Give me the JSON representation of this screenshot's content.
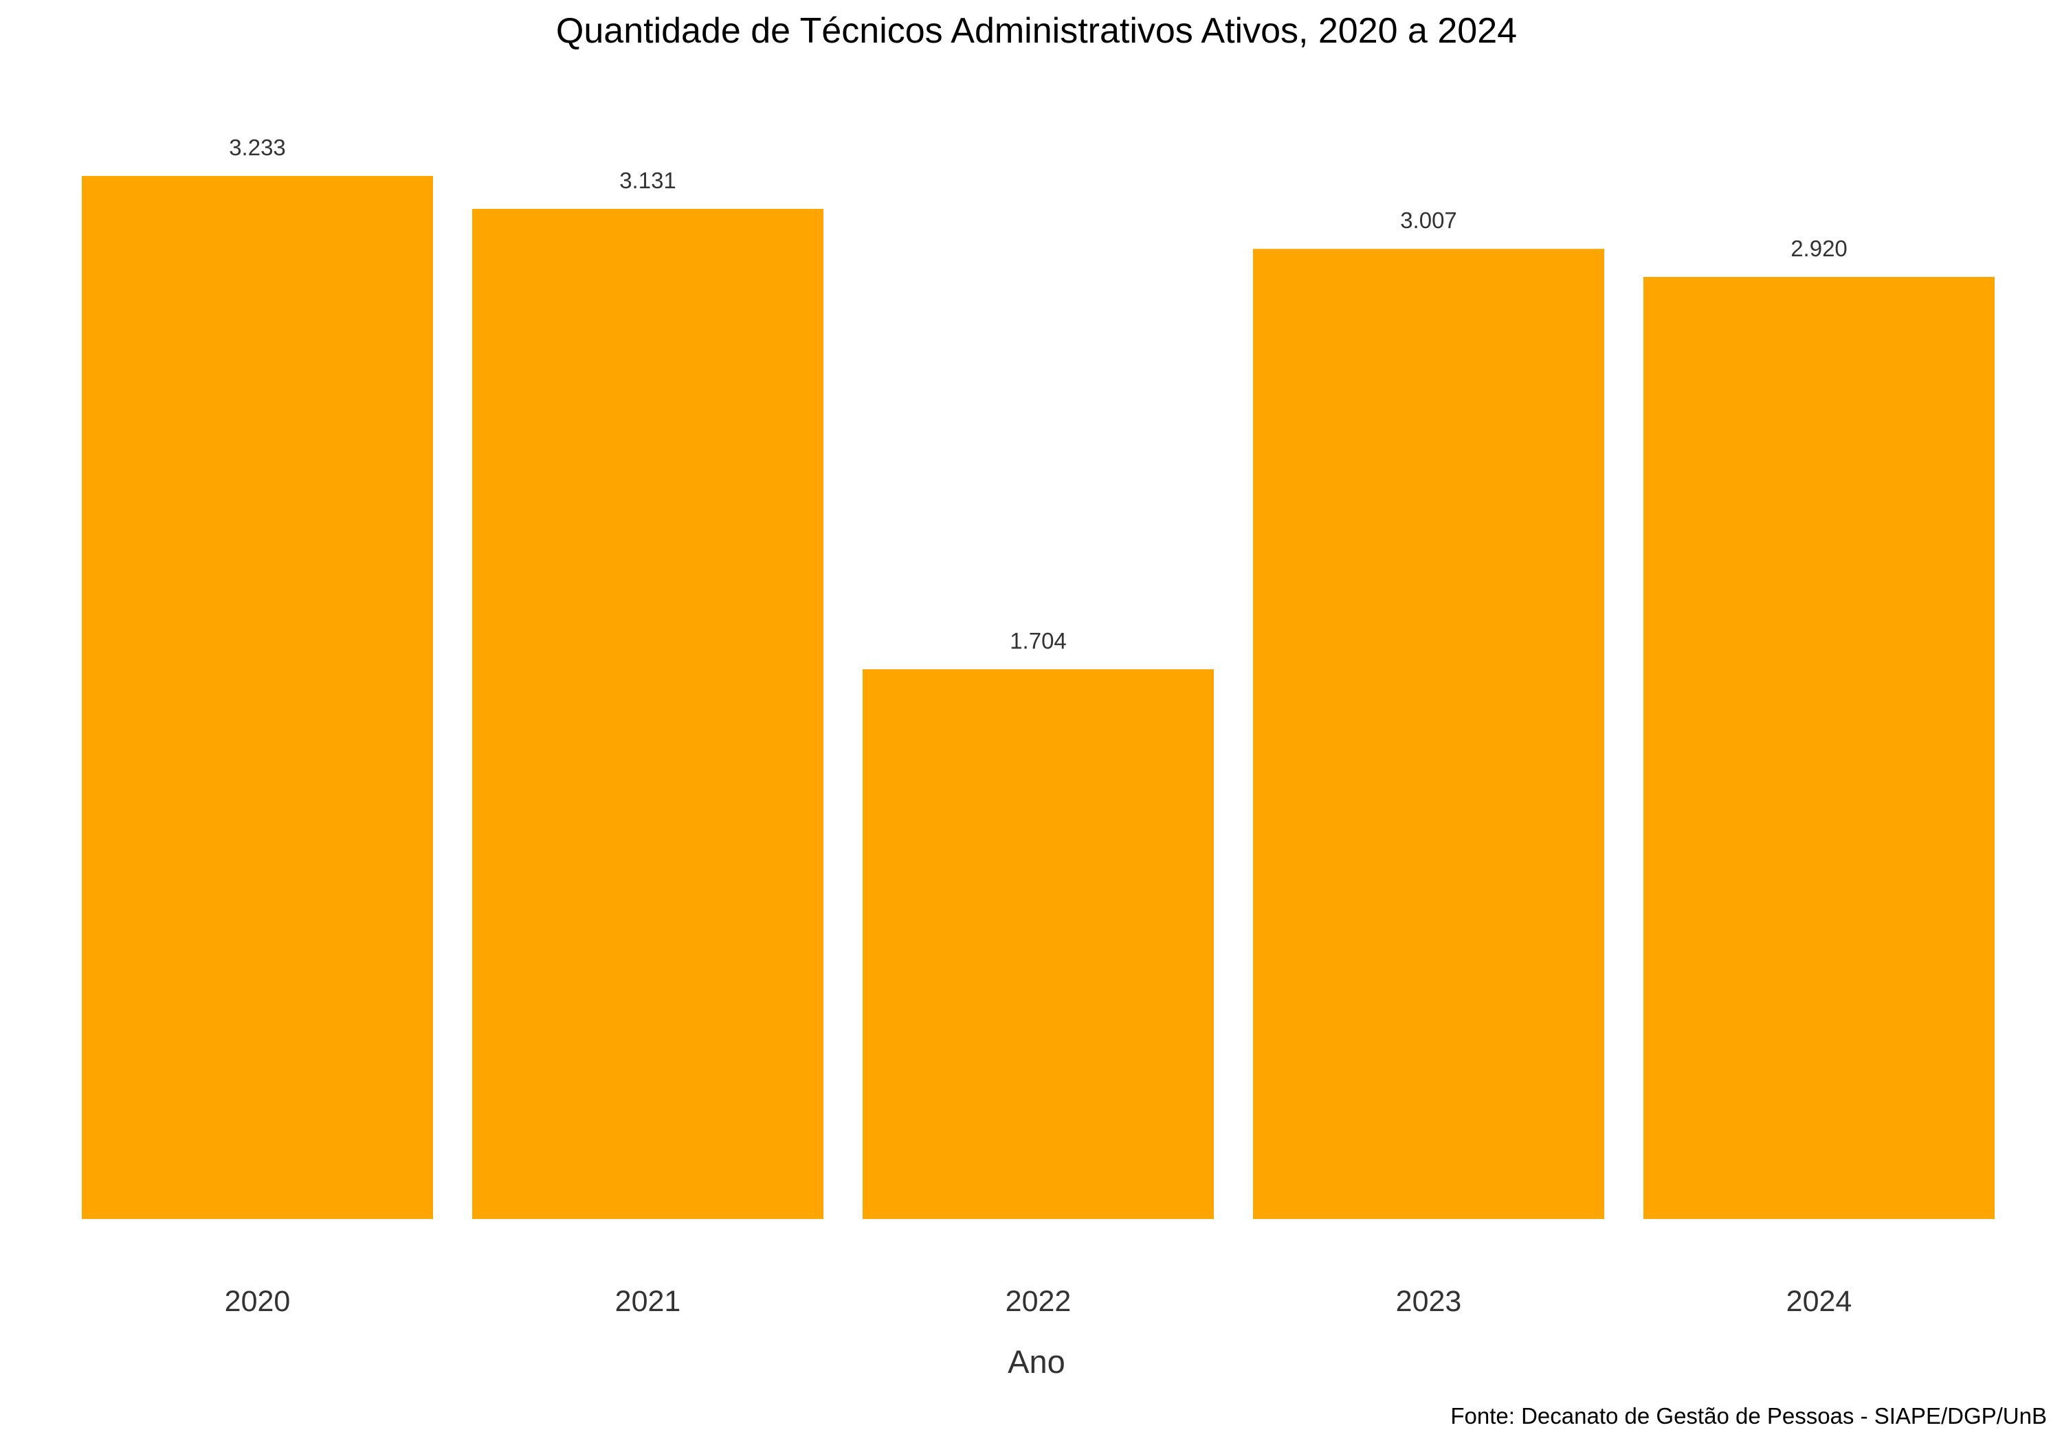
{
  "chart_data": {
    "type": "bar",
    "title": "Quantidade de Técnicos Administrativos Ativos, 2020 a 2024",
    "xlabel": "Ano",
    "ylabel": "",
    "caption": "Fonte: Decanato de Gestão de Pessoas - SIAPE/DGP/UnB",
    "categories": [
      "2020",
      "2021",
      "2022",
      "2023",
      "2024"
    ],
    "values": [
      3233,
      3131,
      1704,
      3007,
      2920
    ],
    "value_labels": [
      "3.233",
      "3.131",
      "1.704",
      "3.007",
      "2.920"
    ],
    "ylim": [
      0,
      3395
    ],
    "grid": false,
    "legend": "none",
    "bar_color": "#FFA500"
  }
}
